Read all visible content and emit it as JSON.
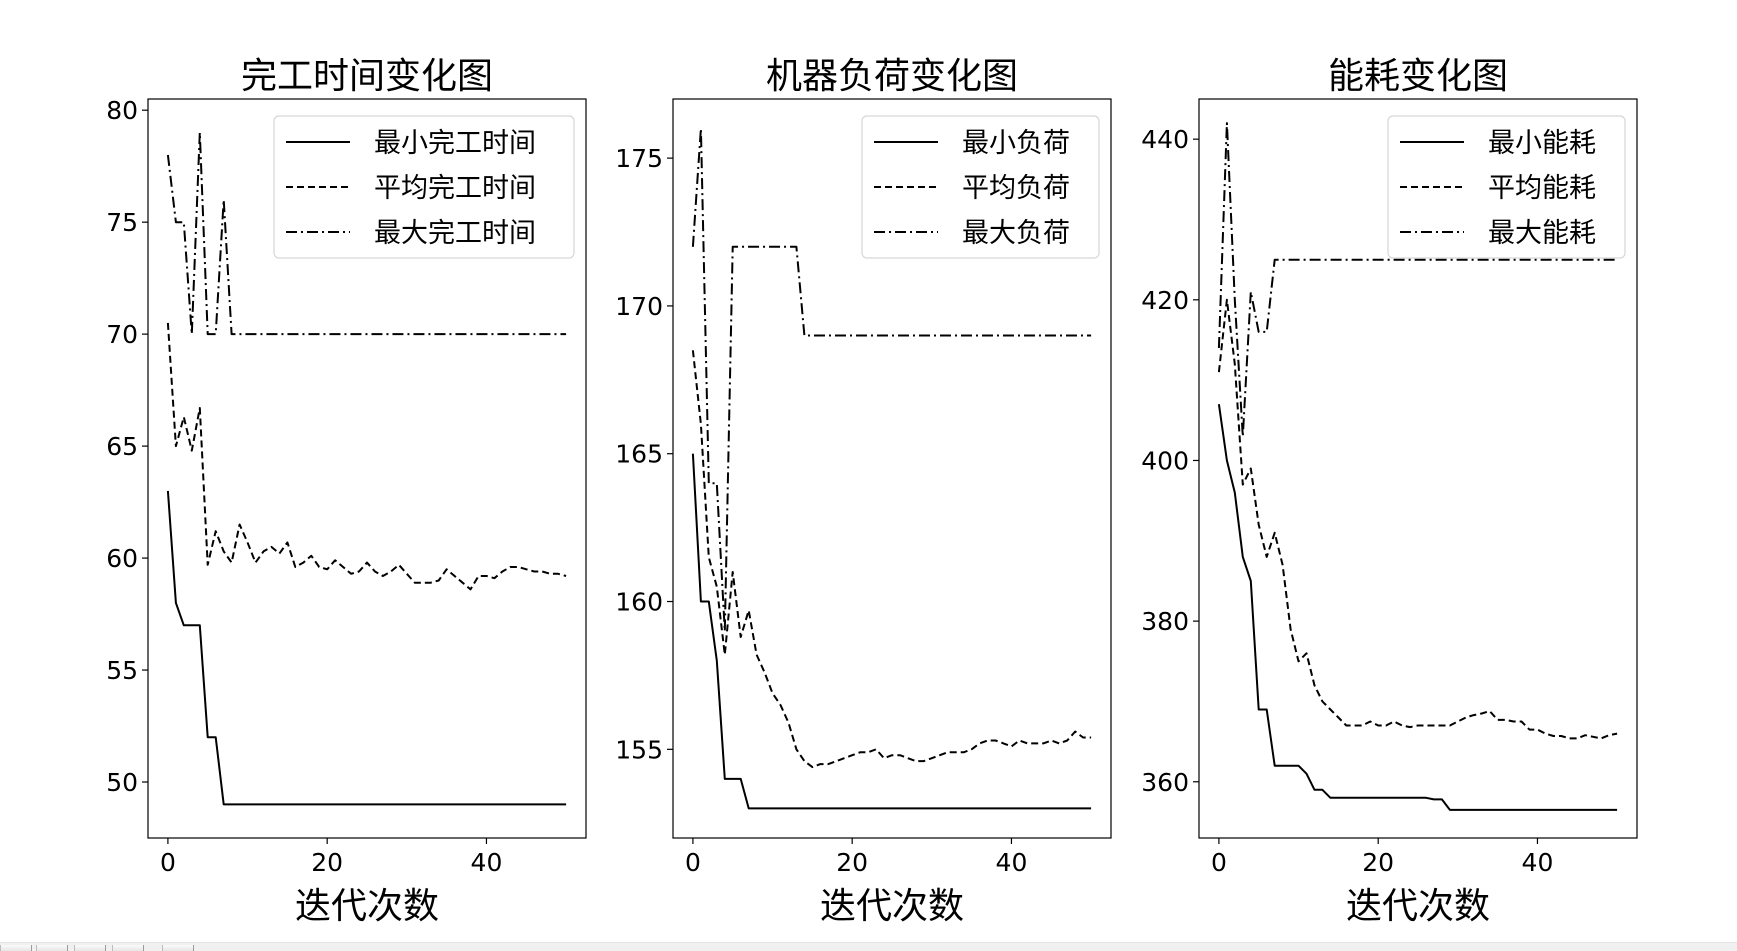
{
  "figure": {
    "background": "#ffffff",
    "line_color": "#000000"
  },
  "toolbar": {
    "buttons": [
      "home-button",
      "back-button",
      "forward-button",
      "pan-button",
      "zoom-button",
      "configure-button",
      "save-button"
    ]
  },
  "chart_data": [
    {
      "type": "line",
      "title": "完工时间变化图",
      "xlabel": "迭代次数",
      "ylabel": "",
      "xlim": [
        -2.5,
        52.5
      ],
      "ylim": [
        47.5,
        80.5
      ],
      "xticks": [
        0,
        20,
        40
      ],
      "yticks": [
        50,
        55,
        60,
        65,
        70,
        75,
        80
      ],
      "grid": false,
      "legend_position": "upper right",
      "x": [
        0,
        1,
        2,
        3,
        4,
        5,
        6,
        7,
        8,
        9,
        10,
        11,
        12,
        13,
        14,
        15,
        16,
        17,
        18,
        19,
        20,
        21,
        22,
        23,
        24,
        25,
        26,
        27,
        28,
        29,
        30,
        31,
        32,
        33,
        34,
        35,
        36,
        37,
        38,
        39,
        40,
        41,
        42,
        43,
        44,
        45,
        46,
        47,
        48,
        49,
        50
      ],
      "series": [
        {
          "name": "最小完工时间",
          "style": "solid",
          "values": [
            63,
            58,
            57,
            57,
            57,
            52,
            52,
            49,
            49,
            49,
            49,
            49,
            49,
            49,
            49,
            49,
            49,
            49,
            49,
            49,
            49,
            49,
            49,
            49,
            49,
            49,
            49,
            49,
            49,
            49,
            49,
            49,
            49,
            49,
            49,
            49,
            49,
            49,
            49,
            49,
            49,
            49,
            49,
            49,
            49,
            49,
            49,
            49,
            49,
            49,
            49
          ]
        },
        {
          "name": "平均完工时间",
          "style": "dashed",
          "values": [
            70.5,
            65.0,
            66.3,
            64.8,
            66.7,
            59.7,
            61.2,
            60.3,
            59.8,
            61.5,
            60.7,
            59.8,
            60.3,
            60.5,
            60.2,
            60.7,
            59.6,
            59.8,
            60.1,
            59.6,
            59.5,
            59.9,
            59.6,
            59.3,
            59.4,
            59.8,
            59.4,
            59.2,
            59.4,
            59.7,
            59.3,
            58.9,
            58.9,
            58.9,
            59.0,
            59.5,
            59.2,
            58.9,
            58.6,
            59.2,
            59.2,
            59.1,
            59.4,
            59.6,
            59.6,
            59.5,
            59.4,
            59.4,
            59.3,
            59.3,
            59.2
          ]
        },
        {
          "name": "最大完工时间",
          "style": "dashdot",
          "values": [
            78,
            75,
            75,
            70,
            79,
            70,
            70,
            76,
            70,
            70,
            70,
            70,
            70,
            70,
            70,
            70,
            70,
            70,
            70,
            70,
            70,
            70,
            70,
            70,
            70,
            70,
            70,
            70,
            70,
            70,
            70,
            70,
            70,
            70,
            70,
            70,
            70,
            70,
            70,
            70,
            70,
            70,
            70,
            70,
            70,
            70,
            70,
            70,
            70,
            70,
            70
          ]
        }
      ]
    },
    {
      "type": "line",
      "title": "机器负荷变化图",
      "xlabel": "迭代次数",
      "ylabel": "",
      "xlim": [
        -2.5,
        52.5
      ],
      "ylim": [
        152.0,
        177.0
      ],
      "xticks": [
        0,
        20,
        40
      ],
      "yticks": [
        155,
        160,
        165,
        170,
        175
      ],
      "grid": false,
      "legend_position": "upper right",
      "x": [
        0,
        1,
        2,
        3,
        4,
        5,
        6,
        7,
        8,
        9,
        10,
        11,
        12,
        13,
        14,
        15,
        16,
        17,
        18,
        19,
        20,
        21,
        22,
        23,
        24,
        25,
        26,
        27,
        28,
        29,
        30,
        31,
        32,
        33,
        34,
        35,
        36,
        37,
        38,
        39,
        40,
        41,
        42,
        43,
        44,
        45,
        46,
        47,
        48,
        49,
        50
      ],
      "series": [
        {
          "name": "最小负荷",
          "style": "solid",
          "values": [
            165,
            160,
            160,
            158,
            154,
            154,
            154,
            153,
            153,
            153,
            153,
            153,
            153,
            153,
            153,
            153,
            153,
            153,
            153,
            153,
            153,
            153,
            153,
            153,
            153,
            153,
            153,
            153,
            153,
            153,
            153,
            153,
            153,
            153,
            153,
            153,
            153,
            153,
            153,
            153,
            153,
            153,
            153,
            153,
            153,
            153,
            153,
            153,
            153,
            153,
            153
          ]
        },
        {
          "name": "平均负荷",
          "style": "dashed",
          "values": [
            168.5,
            166.0,
            161.5,
            160.5,
            158.2,
            161.0,
            158.8,
            159.7,
            158.2,
            157.6,
            156.9,
            156.5,
            155.9,
            155.0,
            154.6,
            154.4,
            154.5,
            154.5,
            154.6,
            154.7,
            154.8,
            154.9,
            154.9,
            155.0,
            154.7,
            154.8,
            154.8,
            154.7,
            154.6,
            154.6,
            154.7,
            154.8,
            154.9,
            154.9,
            154.9,
            155.0,
            155.2,
            155.3,
            155.3,
            155.2,
            155.1,
            155.3,
            155.2,
            155.2,
            155.2,
            155.3,
            155.2,
            155.3,
            155.6,
            155.4,
            155.4
          ]
        },
        {
          "name": "最大负荷",
          "style": "dashdot",
          "values": [
            172,
            176,
            164,
            164,
            159,
            172,
            172,
            172,
            172,
            172,
            172,
            172,
            172,
            172,
            169,
            169,
            169,
            169,
            169,
            169,
            169,
            169,
            169,
            169,
            169,
            169,
            169,
            169,
            169,
            169,
            169,
            169,
            169,
            169,
            169,
            169,
            169,
            169,
            169,
            169,
            169,
            169,
            169,
            169,
            169,
            169,
            169,
            169,
            169,
            169,
            169
          ]
        }
      ]
    },
    {
      "type": "line",
      "title": "能耗变化图",
      "xlabel": "迭代次数",
      "ylabel": "",
      "xlim": [
        -2.5,
        52.5
      ],
      "ylim": [
        353.0,
        445.0
      ],
      "xticks": [
        0,
        20,
        40
      ],
      "yticks": [
        360,
        380,
        400,
        420,
        440
      ],
      "grid": false,
      "legend_position": "upper right",
      "x": [
        0,
        1,
        2,
        3,
        4,
        5,
        6,
        7,
        8,
        9,
        10,
        11,
        12,
        13,
        14,
        15,
        16,
        17,
        18,
        19,
        20,
        21,
        22,
        23,
        24,
        25,
        26,
        27,
        28,
        29,
        30,
        31,
        32,
        33,
        34,
        35,
        36,
        37,
        38,
        39,
        40,
        41,
        42,
        43,
        44,
        45,
        46,
        47,
        48,
        49,
        50
      ],
      "series": [
        {
          "name": "最小能耗",
          "style": "solid",
          "values": [
            407,
            400,
            396,
            388,
            385,
            369,
            369,
            362,
            362,
            362,
            362,
            361,
            359,
            359,
            358,
            358,
            358,
            358,
            358,
            358,
            358,
            358,
            358,
            358,
            358,
            358,
            358,
            357.8,
            357.8,
            356.5,
            356.5,
            356.5,
            356.5,
            356.5,
            356.5,
            356.5,
            356.5,
            356.5,
            356.5,
            356.5,
            356.5,
            356.5,
            356.5,
            356.5,
            356.5,
            356.5,
            356.5,
            356.5,
            356.5,
            356.5,
            356.5
          ]
        },
        {
          "name": "平均能耗",
          "style": "dashed",
          "values": [
            411,
            420,
            412,
            397,
            399,
            392,
            388,
            391,
            387,
            379,
            375,
            376,
            372,
            370,
            369,
            368,
            367,
            367,
            367,
            367.5,
            367,
            367,
            367.5,
            367,
            366.8,
            367,
            367,
            367,
            367,
            367,
            367.5,
            368,
            368.3,
            368.5,
            368.8,
            367.7,
            367.7,
            367.5,
            367.5,
            366.5,
            366.5,
            366,
            365.7,
            365.7,
            365.4,
            365.4,
            365.8,
            365.6,
            365.4,
            365.8,
            366.0
          ]
        },
        {
          "name": "最大能耗",
          "style": "dashdot",
          "values": [
            414,
            442,
            420,
            403,
            421,
            416,
            416,
            425,
            425,
            425,
            425,
            425,
            425,
            425,
            425,
            425,
            425,
            425,
            425,
            425,
            425,
            425,
            425,
            425,
            425,
            425,
            425,
            425,
            425,
            425,
            425,
            425,
            425,
            425,
            425,
            425,
            425,
            425,
            425,
            425,
            425,
            425,
            425,
            425,
            425,
            425,
            425,
            425,
            425,
            425,
            425
          ]
        }
      ]
    }
  ]
}
